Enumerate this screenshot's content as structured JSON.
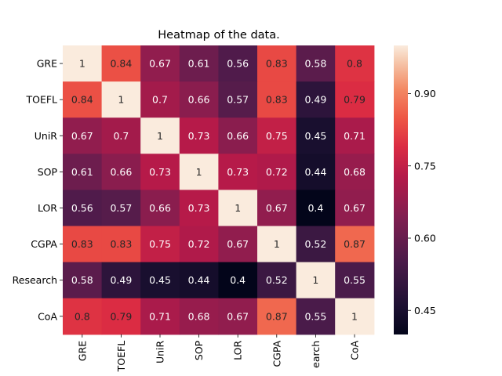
{
  "chart_data": {
    "type": "heatmap",
    "title": "Heatmap of the data.",
    "row_labels": [
      "GRE",
      "TOEFL",
      "UniR",
      "SOP",
      "LOR",
      "CGPA",
      "Research",
      "CoA"
    ],
    "col_labels": [
      "GRE",
      "TOEFL",
      "UniR",
      "SOP",
      "LOR",
      "CGPA",
      "earch",
      "CoA"
    ],
    "values": [
      [
        1,
        0.84,
        0.67,
        0.61,
        0.56,
        0.83,
        0.58,
        0.8
      ],
      [
        0.84,
        1,
        0.7,
        0.66,
        0.57,
        0.83,
        0.49,
        0.79
      ],
      [
        0.67,
        0.7,
        1,
        0.73,
        0.66,
        0.75,
        0.45,
        0.71
      ],
      [
        0.61,
        0.66,
        0.73,
        1,
        0.73,
        0.72,
        0.44,
        0.68
      ],
      [
        0.56,
        0.57,
        0.66,
        0.73,
        1,
        0.67,
        0.4,
        0.67
      ],
      [
        0.83,
        0.83,
        0.75,
        0.72,
        0.67,
        1,
        0.52,
        0.87
      ],
      [
        0.58,
        0.49,
        0.45,
        0.44,
        0.4,
        0.52,
        1,
        0.55
      ],
      [
        0.8,
        0.79,
        0.71,
        0.68,
        0.67,
        0.87,
        0.55,
        1
      ]
    ],
    "colorbar": {
      "vmin": 0.4,
      "vmax": 1.0,
      "ticks": [
        0.45,
        0.6,
        0.75,
        0.9
      ],
      "tick_labels": [
        "0.45",
        "0.60",
        "0.75",
        "0.90"
      ]
    },
    "colormap": "rocket",
    "grid": false,
    "legend": "colorbar-right"
  }
}
